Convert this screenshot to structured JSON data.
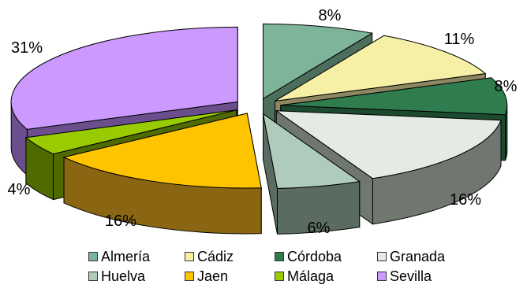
{
  "chart_data": {
    "type": "pie",
    "title": "",
    "legend_position": "bottom",
    "slices": [
      {
        "label": "Almería",
        "value": 8,
        "value_label": "8%",
        "color": "#7db49a",
        "side_color": "#4b6e5d"
      },
      {
        "label": "Cádiz",
        "value": 11,
        "value_label": "11%",
        "color": "#f6f0a6",
        "side_color": "#8c8760"
      },
      {
        "label": "Córdoba",
        "value": 8,
        "value_label": "8%",
        "color": "#2f7d4f",
        "side_color": "#1c4a2f"
      },
      {
        "label": "Granada",
        "value": 16,
        "value_label": "16%",
        "color": "#e4ebe4",
        "side_color": "#6f776f"
      },
      {
        "label": "Huelva",
        "value": 6,
        "value_label": "6%",
        "color": "#aecbbb",
        "side_color": "#5a6c62"
      },
      {
        "label": "Jaen",
        "value": 16,
        "value_label": "16%",
        "color": "#ffc400",
        "side_color": "#8a6512"
      },
      {
        "label": "Málaga",
        "value": 4,
        "value_label": "4%",
        "color": "#99cc00",
        "side_color": "#4f6b00"
      },
      {
        "label": "Sevilla",
        "value": 31,
        "value_label": "31%",
        "color": "#cc99ff",
        "side_color": "#6b4f8c"
      }
    ]
  }
}
